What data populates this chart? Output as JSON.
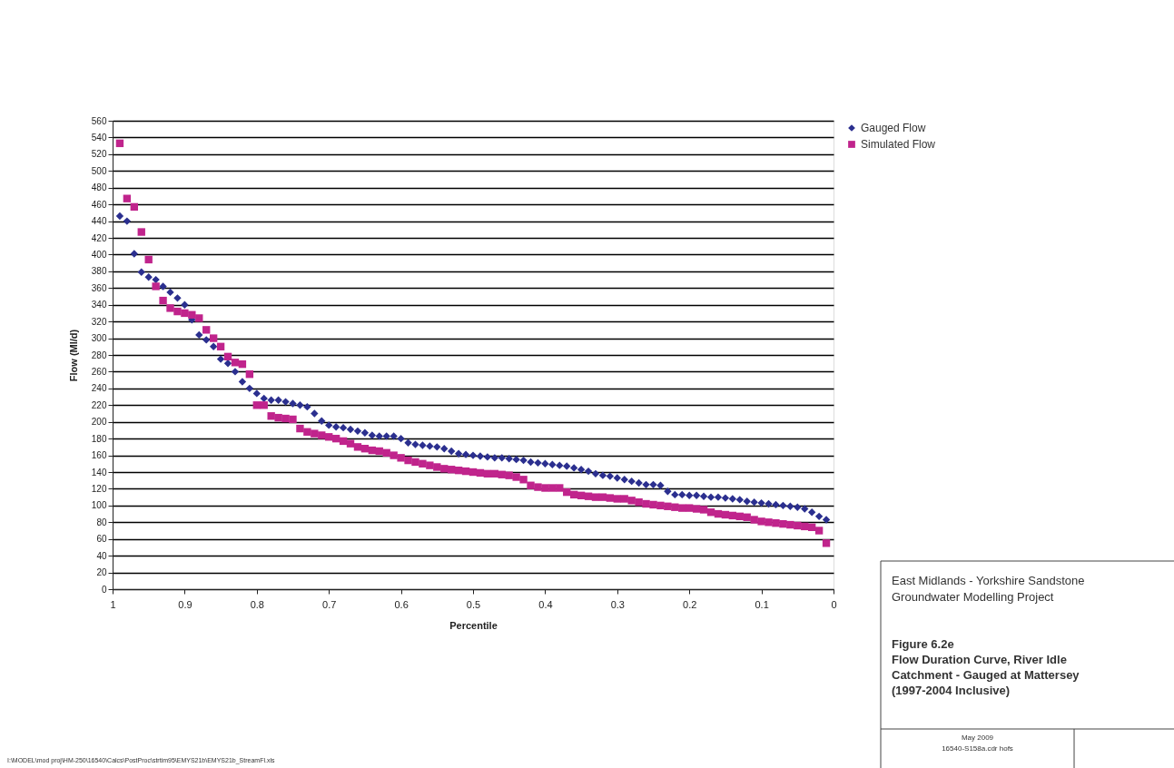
{
  "chart_data": {
    "type": "scatter",
    "title": "Figure 6.2e Flow Duration Curve, River Idle Catchment - Gauged at Mattersey (1997-2004 Inclusive)",
    "subtitle": "East Midlands - Yorkshire Sandstone Groundwater Modelling Project",
    "xlabel": "Percentile",
    "ylabel": "Flow (Ml/d)",
    "x": [
      0.99,
      0.98,
      0.97,
      0.96,
      0.95,
      0.94,
      0.93,
      0.92,
      0.91,
      0.9,
      0.89,
      0.88,
      0.87,
      0.86,
      0.85,
      0.84,
      0.83,
      0.82,
      0.81,
      0.8,
      0.79,
      0.78,
      0.77,
      0.76,
      0.75,
      0.74,
      0.73,
      0.72,
      0.71,
      0.7,
      0.69,
      0.68,
      0.67,
      0.66,
      0.65,
      0.64,
      0.63,
      0.62,
      0.61,
      0.6,
      0.59,
      0.58,
      0.57,
      0.56,
      0.55,
      0.54,
      0.53,
      0.52,
      0.51,
      0.5,
      0.49,
      0.48,
      0.47,
      0.46,
      0.45,
      0.44,
      0.43,
      0.42,
      0.41,
      0.4,
      0.39,
      0.38,
      0.37,
      0.36,
      0.35,
      0.34,
      0.33,
      0.32,
      0.31,
      0.3,
      0.29,
      0.28,
      0.27,
      0.26,
      0.25,
      0.24,
      0.23,
      0.22,
      0.21,
      0.2,
      0.19,
      0.18,
      0.17,
      0.16,
      0.15,
      0.14,
      0.13,
      0.12,
      0.11,
      0.1,
      0.09,
      0.08,
      0.07,
      0.06,
      0.05,
      0.04,
      0.03,
      0.02,
      0.01
    ],
    "series": [
      {
        "name": "Gauged Flow",
        "color": "#2b2f8f",
        "marker": "diamond",
        "values": [
          446,
          440,
          401,
          379,
          373,
          370,
          362,
          355,
          348,
          340,
          322,
          304,
          298,
          290,
          275,
          270,
          260,
          248,
          240,
          234,
          228,
          226,
          226,
          224,
          222,
          220,
          218,
          210,
          201,
          196,
          194,
          193,
          191,
          189,
          187,
          184,
          183,
          183,
          183,
          180,
          175,
          173,
          172,
          171,
          170,
          168,
          165,
          162,
          161,
          160,
          159,
          158,
          157,
          157,
          156,
          155,
          154,
          152,
          151,
          150,
          149,
          148,
          147,
          145,
          143,
          141,
          138,
          136,
          135,
          133,
          131,
          129,
          127,
          125,
          125,
          124,
          117,
          113,
          113,
          112,
          112,
          111,
          110,
          110,
          109,
          108,
          107,
          105,
          104,
          103,
          102,
          101,
          100,
          99,
          98,
          96,
          92,
          87,
          83
        ]
      },
      {
        "name": "Simulated Flow",
        "color": "#c0248c",
        "marker": "square",
        "values": [
          533,
          467,
          457,
          427,
          394,
          362,
          345,
          336,
          332,
          330,
          328,
          324,
          310,
          300,
          290,
          278,
          271,
          269,
          257,
          220,
          220,
          207,
          205,
          204,
          203,
          192,
          188,
          186,
          184,
          182,
          180,
          177,
          174,
          170,
          168,
          166,
          165,
          163,
          160,
          157,
          154,
          152,
          150,
          148,
          146,
          144,
          143,
          142,
          141,
          140,
          139,
          138,
          138,
          137,
          136,
          134,
          131,
          124,
          122,
          121,
          121,
          121,
          116,
          113,
          112,
          111,
          110,
          110,
          109,
          108,
          108,
          106,
          104,
          102,
          101,
          100,
          99,
          98,
          97,
          97,
          96,
          95,
          92,
          90,
          89,
          88,
          87,
          86,
          83,
          81,
          80,
          79,
          78,
          77,
          76,
          75,
          74,
          70,
          55
        ]
      }
    ],
    "xlim": [
      1,
      0
    ],
    "xticks": [
      1,
      0.9,
      0.8,
      0.7,
      0.6,
      0.5,
      0.4,
      0.3,
      0.2,
      0.1,
      0
    ],
    "ylim": [
      0,
      560
    ],
    "yticks": [
      0,
      20,
      40,
      60,
      80,
      100,
      120,
      140,
      160,
      180,
      200,
      220,
      240,
      260,
      280,
      300,
      320,
      340,
      360,
      380,
      400,
      420,
      440,
      460,
      480,
      500,
      520,
      540,
      560
    ],
    "grid": "y",
    "legend": "top right",
    "annotations": [
      "May 2009",
      "16540-S158a.cdr hofs",
      "I:\\MODEL\\mod proj\\HM-250\\16540\\Calcs\\PostProc\\strtim95\\EMYS21b\\EMYS21b_StreamFl.xls"
    ]
  }
}
